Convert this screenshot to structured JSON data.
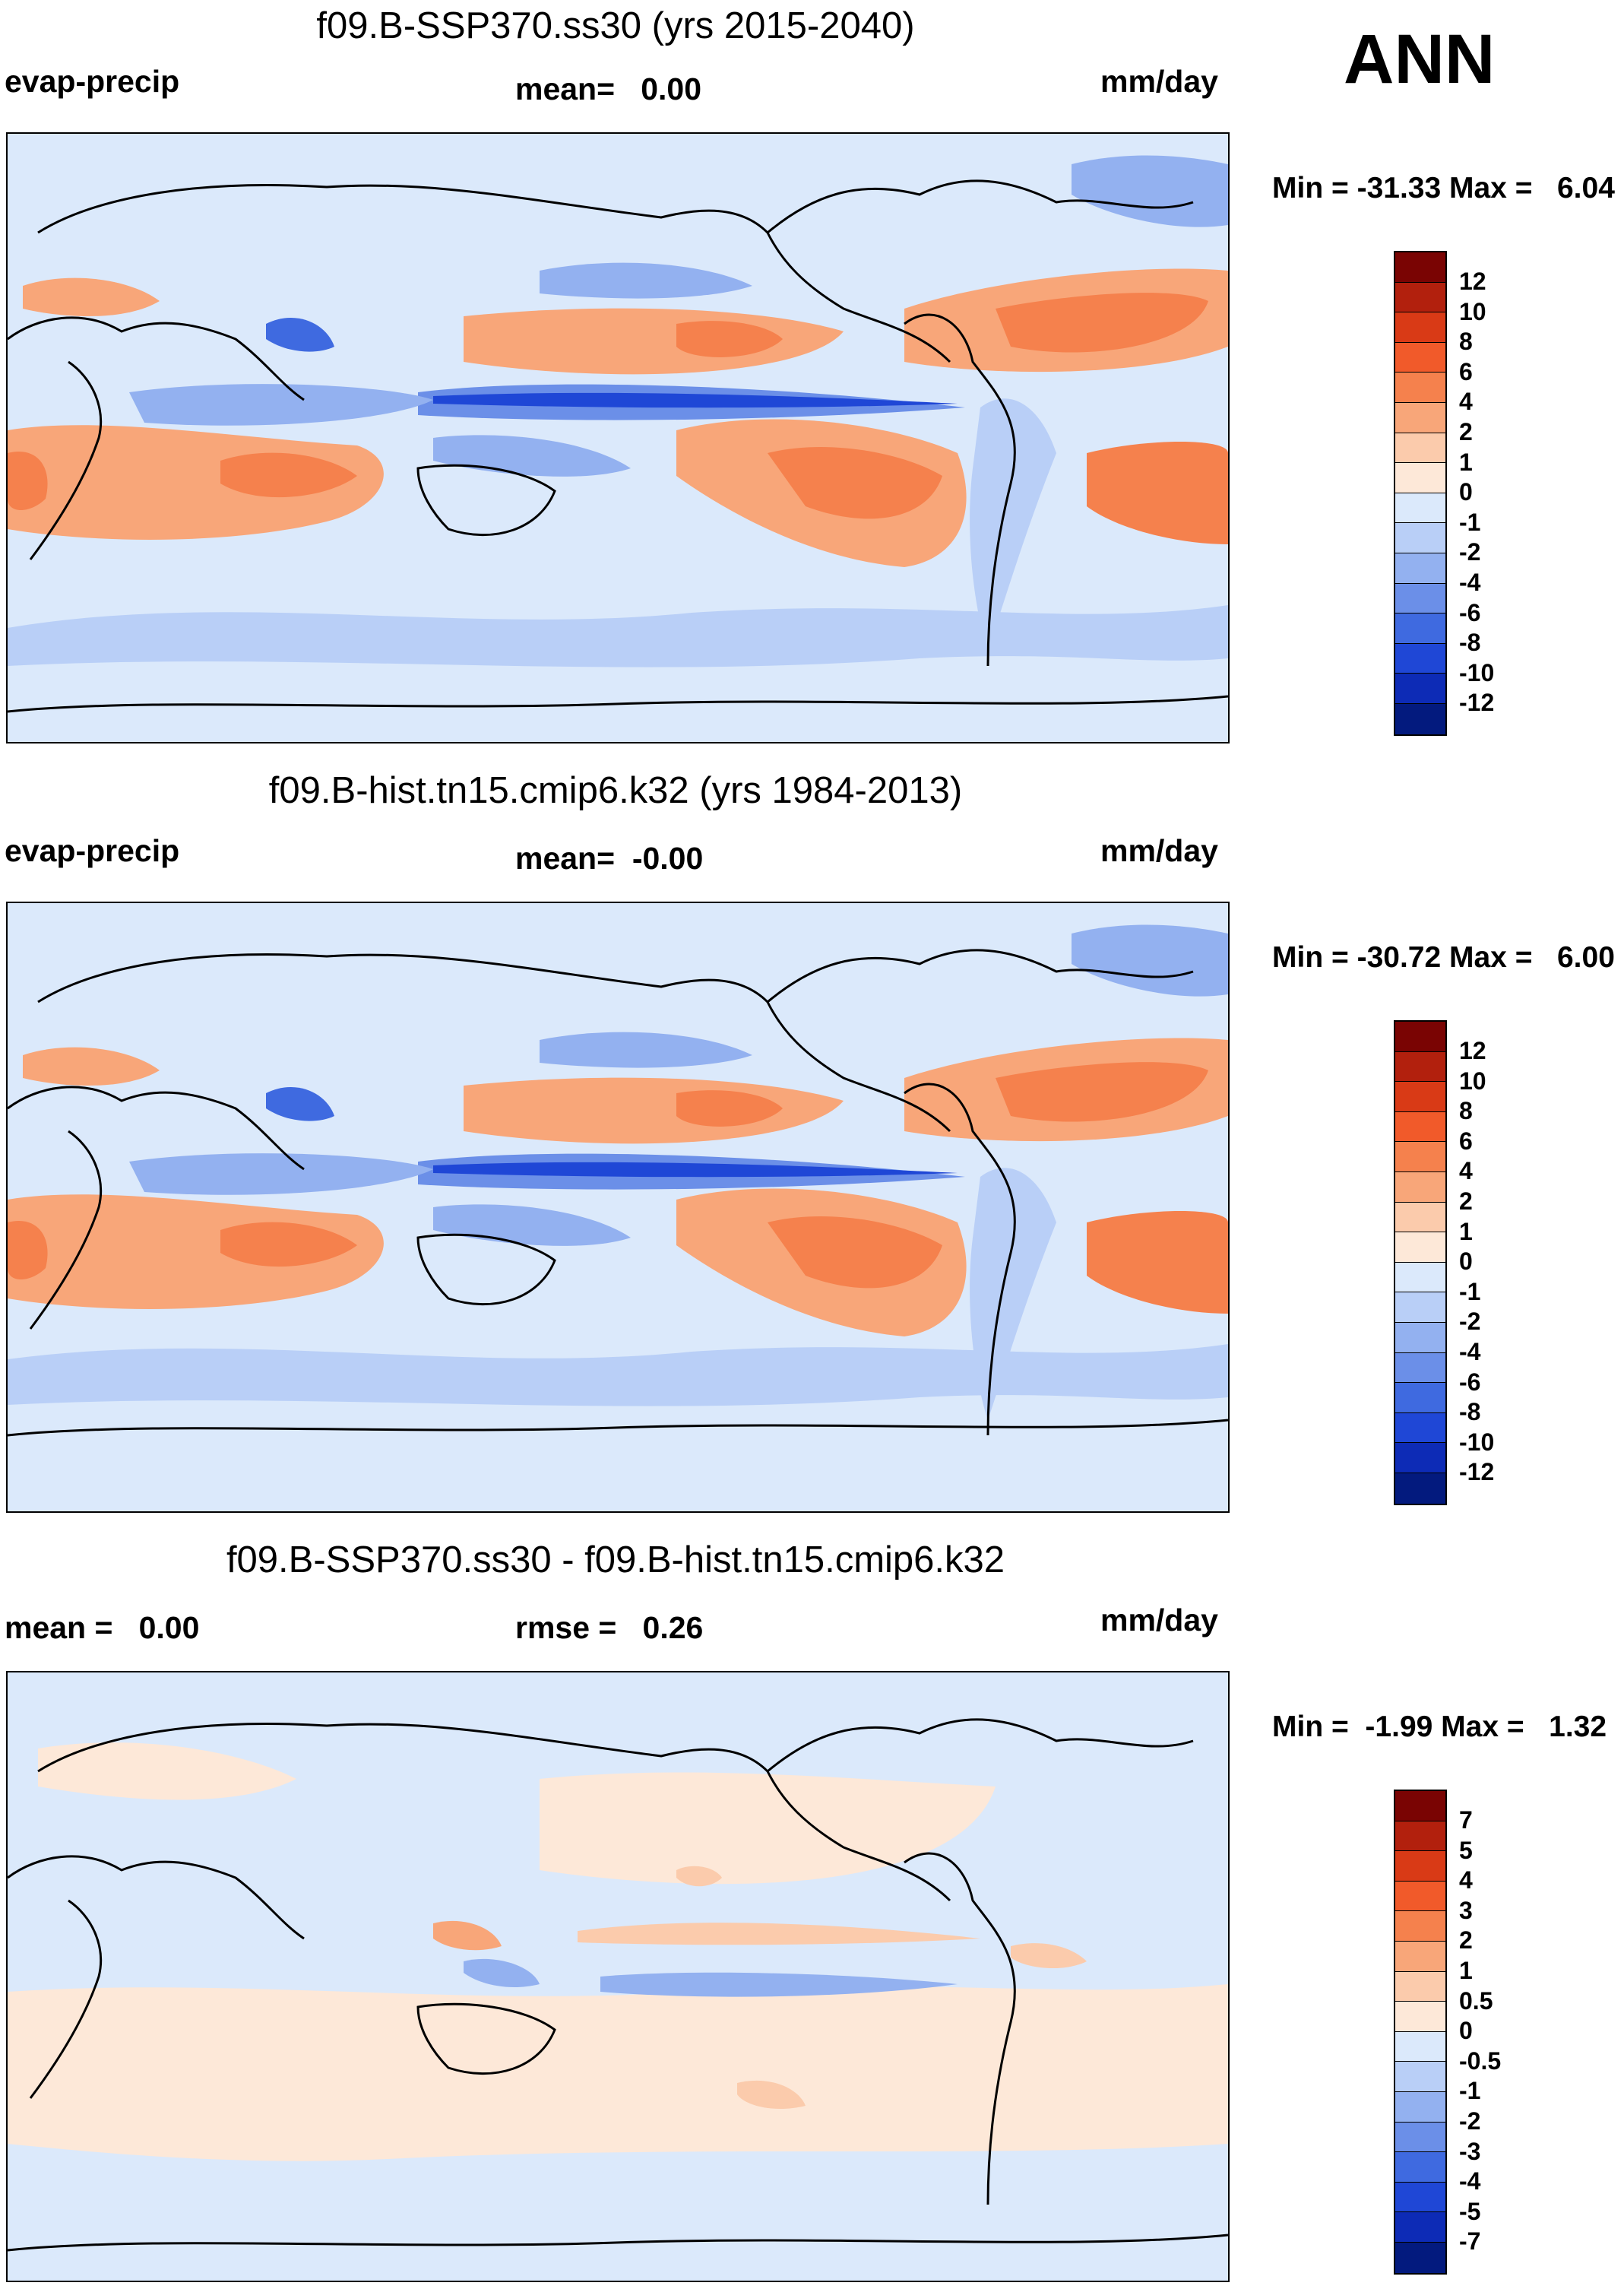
{
  "season": "ANN",
  "palette": {
    "p12": "#7a0403",
    "p10": "#b2200d",
    "p8": "#d93a16",
    "p6": "#f15a2a",
    "p4": "#f5814d",
    "p2": "#f8a679",
    "p1": "#fbcbac",
    "p0": "#fde8d8",
    "n1": "#dbe9fb",
    "n2": "#b9cff7",
    "n4": "#93b1f0",
    "n6": "#6b8fe8",
    "n8": "#3f6ae0",
    "n10": "#1f47d6",
    "n12": "#0d2bb6",
    "n14": "#031a7e"
  },
  "panels": [
    {
      "title": "f09.B-SSP370.ss30 (yrs 2015-2040)",
      "left_label": "evap-precip",
      "center_label": "mean=   0.00",
      "right_label": "mm/day",
      "minmax": "Min = -31.33 Max =   6.04",
      "colorbar_ticks": [
        "12",
        "10",
        "8",
        "6",
        "4",
        "2",
        "1",
        "0",
        "-1",
        "-2",
        "-4",
        "-6",
        "-8",
        "-10",
        "-12"
      ]
    },
    {
      "title": "f09.B-hist.tn15.cmip6.k32 (yrs 1984-2013)",
      "left_label": "evap-precip",
      "center_label": "mean=  -0.00",
      "right_label": "mm/day",
      "minmax": "Min = -30.72 Max =   6.00",
      "colorbar_ticks": [
        "12",
        "10",
        "8",
        "6",
        "4",
        "2",
        "1",
        "0",
        "-1",
        "-2",
        "-4",
        "-6",
        "-8",
        "-10",
        "-12"
      ]
    },
    {
      "title": "f09.B-SSP370.ss30 - f09.B-hist.tn15.cmip6.k32",
      "left_label": "mean =   0.00",
      "center_label": "rmse =   0.26",
      "right_label": "mm/day",
      "minmax": "Min =  -1.99 Max =   1.32",
      "colorbar_ticks": [
        "7",
        "5",
        "4",
        "3",
        "2",
        "1",
        "0.5",
        "0",
        "-0.5",
        "-1",
        "-2",
        "-3",
        "-4",
        "-5",
        "-7"
      ]
    }
  ]
}
